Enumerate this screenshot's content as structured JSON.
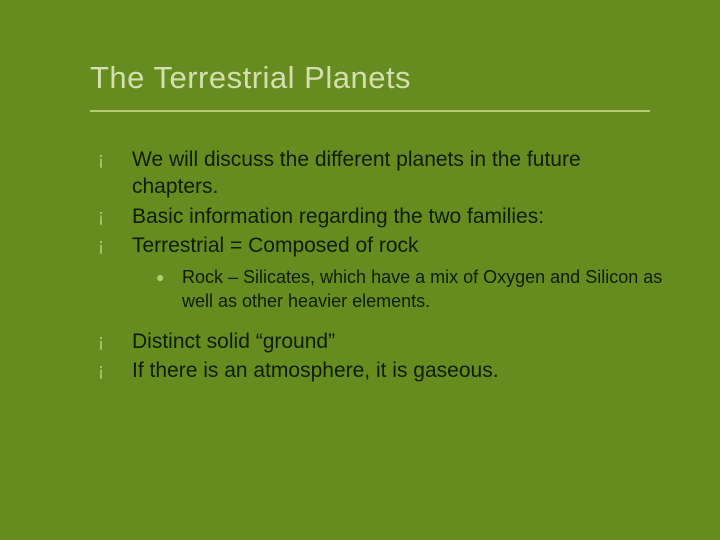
{
  "slide": {
    "background_color": "#668c1f",
    "title": "The Terrestrial Planets",
    "title_color": "#d3dfb0",
    "title_fontsize": 31,
    "rule_color": "#b5cd72",
    "body_color": "#0f1c00",
    "body_fontsize": 21,
    "sub_fontsize": 18,
    "hollow_bullet": "¡",
    "solid_bullet": "●",
    "bullet_color": "#b5cd72",
    "items_a": [
      "We will discuss the different planets in the future chapters.",
      "Basic information regarding the two families:",
      "Terrestrial = Composed of rock"
    ],
    "sub_items": [
      "Rock – Silicates, which have a mix of Oxygen and Silicon as well as other heavier elements."
    ],
    "items_b": [
      "Distinct solid “ground”",
      "If there is an atmosphere, it is gaseous."
    ]
  }
}
